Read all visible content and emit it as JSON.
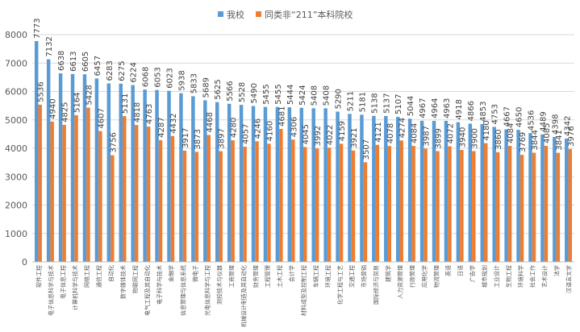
{
  "chart_data": {
    "type": "bar",
    "categories": [
      "软件工程",
      "电子信息科学与技术",
      "电子信息工程",
      "计算机科学与技术",
      "网络工程",
      "通信工程",
      "自动化",
      "数字媒体技术",
      "物联网工程",
      "电气工程及其自动化",
      "电子科学与技术",
      "金融学",
      "信息管理与信息系统",
      "微电子",
      "光电信息科学与工程",
      "测控技术与仪器",
      "工商管理",
      "机械设计制造及其自动化",
      "财务管理",
      "工程管理",
      "土木工程",
      "会计学",
      "材料成型及控制工程",
      "车辆工程",
      "环境工程",
      "化学工程与工艺",
      "交通工程",
      "市场营销",
      "国际经济与贸易",
      "建筑学",
      "人力资源管理",
      "行政管理",
      "应用化学",
      "物流管理",
      "英语",
      "日语",
      "广告学",
      "城市规划",
      "工业设计",
      "生物工程",
      "环境科学",
      "社会工作",
      "艺术设计",
      "法学",
      "汉语言文学"
    ],
    "series": [
      {
        "name": "我校",
        "color": "#5b9bd5",
        "values": [
          7773,
          7132,
          6638,
          6613,
          6605,
          6457,
          6283,
          6275,
          6224,
          6068,
          6053,
          6023,
          5938,
          5833,
          5689,
          5625,
          5566,
          5528,
          5490,
          5455,
          5455,
          5444,
          5424,
          5408,
          5408,
          5290,
          5211,
          5181,
          5138,
          5137,
          5107,
          5044,
          4967,
          4964,
          4963,
          4918,
          4866,
          4853,
          4753,
          4667,
          4650,
          4536,
          4489,
          4398,
          4342
        ]
      },
      {
        "name": "同类非“211”本科院校",
        "color": "#ed7d31",
        "values": [
          5536,
          4940,
          4825,
          5164,
          5428,
          4607,
          3756,
          5131,
          4818,
          4763,
          4287,
          4432,
          3917,
          3873,
          4468,
          3897,
          4280,
          4057,
          4246,
          4160,
          4681,
          4306,
          4045,
          3992,
          4022,
          4159,
          3921,
          3507,
          4121,
          4078,
          4274,
          4084,
          3987,
          3899,
          4072,
          3940,
          3900,
          4180,
          3860,
          4084,
          3769,
          3844,
          4085,
          3841,
          3976
        ]
      }
    ],
    "ylim": [
      0,
      8000
    ],
    "yticks": [
      0,
      1000,
      2000,
      3000,
      4000,
      5000,
      6000,
      7000,
      8000
    ],
    "grid": true,
    "legend": "top"
  }
}
